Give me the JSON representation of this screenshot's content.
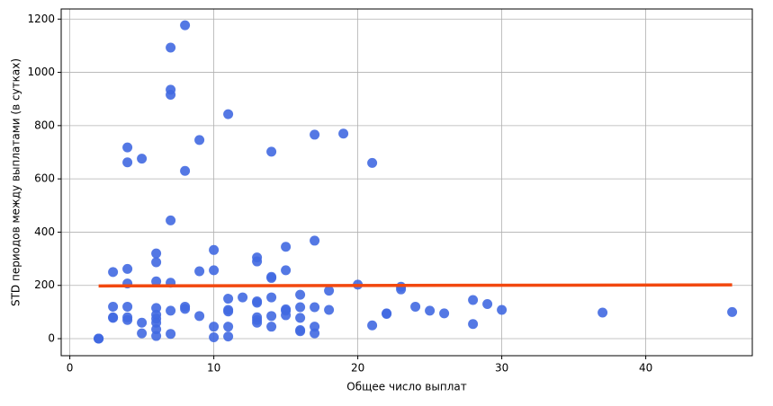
{
  "chart_data": {
    "type": "scatter",
    "xlabel": "Общее число выплат",
    "ylabel": "STD периодов между выплатами (в сутках)",
    "x": [
      2,
      2,
      2,
      3,
      3,
      3,
      3,
      4,
      4,
      4,
      4,
      4,
      4,
      4,
      5,
      5,
      5,
      6,
      6,
      6,
      6,
      6,
      6,
      6,
      6,
      6,
      7,
      7,
      7,
      7,
      7,
      7,
      7,
      8,
      8,
      8,
      8,
      9,
      9,
      9,
      10,
      10,
      10,
      10,
      11,
      11,
      11,
      11,
      11,
      11,
      12,
      13,
      13,
      13,
      13,
      13,
      13,
      13,
      14,
      14,
      14,
      14,
      14,
      14,
      15,
      15,
      15,
      15,
      15,
      16,
      16,
      16,
      16,
      16,
      17,
      17,
      17,
      17,
      17,
      18,
      18,
      19,
      20,
      21,
      21,
      22,
      22,
      23,
      23,
      24,
      25,
      26,
      28,
      28,
      29,
      30,
      37,
      46
    ],
    "values": [
      0,
      0,
      0,
      250,
      120,
      80,
      78,
      718,
      662,
      262,
      207,
      120,
      80,
      70,
      676,
      60,
      20,
      320,
      287,
      215,
      115,
      90,
      75,
      60,
      35,
      10,
      1093,
      935,
      916,
      444,
      210,
      105,
      18,
      1177,
      630,
      120,
      112,
      746,
      253,
      85,
      333,
      257,
      45,
      5,
      843,
      150,
      108,
      102,
      45,
      8,
      155,
      305,
      290,
      140,
      135,
      80,
      70,
      60,
      702,
      232,
      228,
      155,
      85,
      45,
      345,
      257,
      110,
      105,
      88,
      165,
      118,
      78,
      32,
      28,
      766,
      368,
      118,
      45,
      20,
      180,
      108,
      770,
      203,
      660,
      50,
      95,
      93,
      195,
      185,
      120,
      105,
      95,
      145,
      55,
      130,
      108,
      98,
      100
    ],
    "color": "#4169e1",
    "trend": {
      "x": [
        2,
        46
      ],
      "values": [
        198,
        202
      ],
      "color": "#f2480f"
    },
    "xlim": [
      -0.6,
      47.4
    ],
    "ylim": [
      -64,
      1238
    ],
    "xticks": [
      0,
      10,
      20,
      30,
      40
    ],
    "yticks": [
      0,
      200,
      400,
      600,
      800,
      1000,
      1200
    ],
    "grid": true
  }
}
